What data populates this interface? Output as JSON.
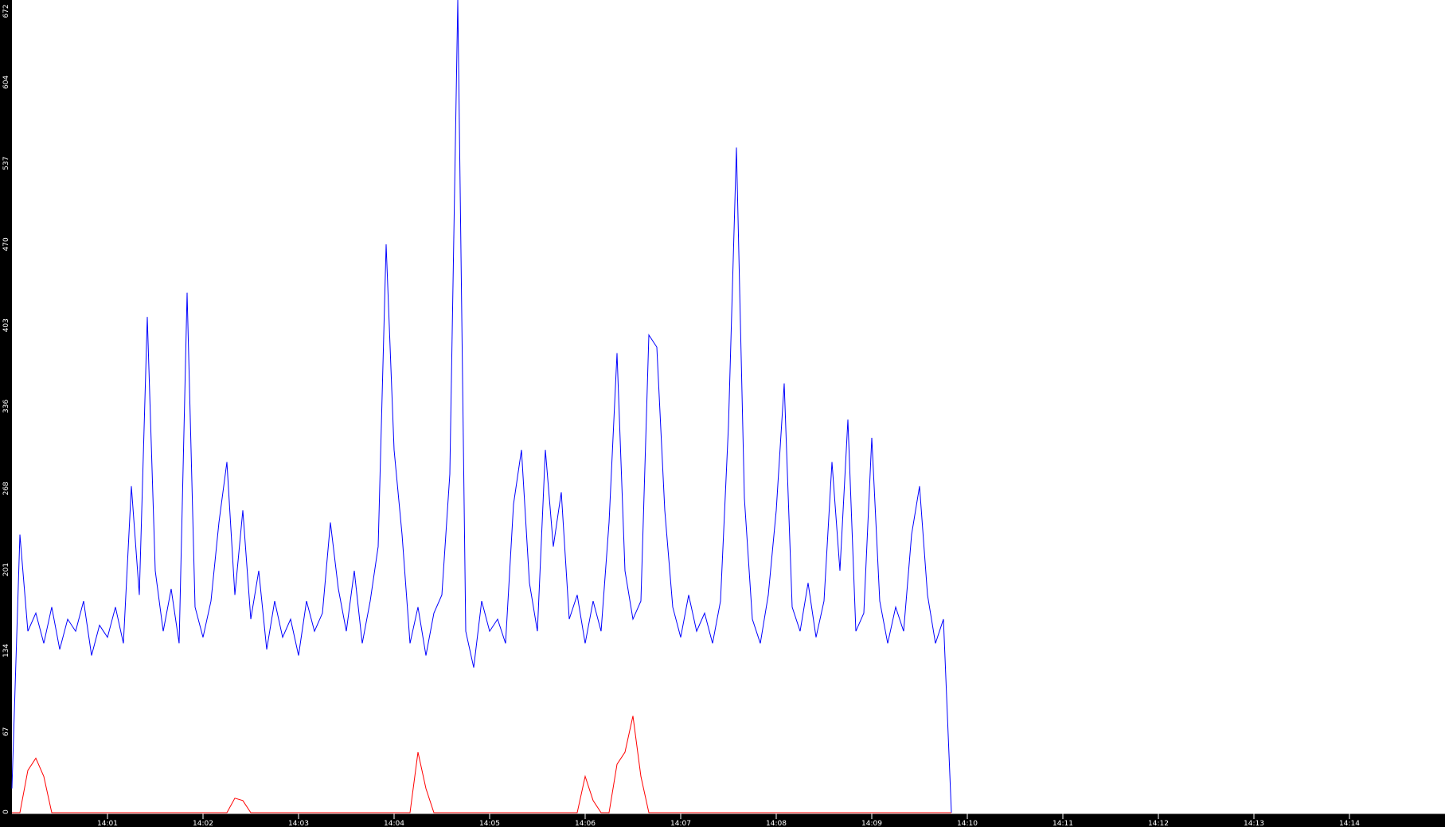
{
  "chart_data": {
    "type": "line",
    "title": "",
    "xlabel": "",
    "ylabel": "",
    "ylim": [
      0,
      672
    ],
    "xlim": [
      "14:00:00",
      "14:15:00"
    ],
    "grid": false,
    "yticks": [
      "0",
      "67",
      "134",
      "201",
      "268",
      "336",
      "403",
      "470",
      "537",
      "604",
      "672"
    ],
    "xticks": [
      "14:01",
      "14:02",
      "14:03",
      "14:04",
      "14:05",
      "14:06",
      "14:07",
      "14:08",
      "14:09",
      "14:10",
      "14:11",
      "14:12",
      "14:13",
      "14:14"
    ],
    "x": [
      "14:00:00",
      "14:00:05",
      "14:00:10",
      "14:00:15",
      "14:00:20",
      "14:00:25",
      "14:00:30",
      "14:00:35",
      "14:00:40",
      "14:00:45",
      "14:00:50",
      "14:00:55",
      "14:01:00",
      "14:01:05",
      "14:01:10",
      "14:01:15",
      "14:01:20",
      "14:01:25",
      "14:01:30",
      "14:01:35",
      "14:01:40",
      "14:01:45",
      "14:01:50",
      "14:01:55",
      "14:02:00",
      "14:02:05",
      "14:02:10",
      "14:02:15",
      "14:02:20",
      "14:02:25",
      "14:02:30",
      "14:02:35",
      "14:02:40",
      "14:02:45",
      "14:02:50",
      "14:02:55",
      "14:03:00",
      "14:03:05",
      "14:03:10",
      "14:03:15",
      "14:03:20",
      "14:03:25",
      "14:03:30",
      "14:03:35",
      "14:03:40",
      "14:03:45",
      "14:03:50",
      "14:03:55",
      "14:04:00",
      "14:04:05",
      "14:04:10",
      "14:04:15",
      "14:04:20",
      "14:04:25",
      "14:04:30",
      "14:04:35",
      "14:04:40",
      "14:04:45",
      "14:04:50",
      "14:04:55",
      "14:05:00",
      "14:05:05",
      "14:05:10",
      "14:05:15",
      "14:05:20",
      "14:05:25",
      "14:05:30",
      "14:05:35",
      "14:05:40",
      "14:05:45",
      "14:05:50",
      "14:05:55",
      "14:06:00",
      "14:06:05",
      "14:06:10",
      "14:06:15",
      "14:06:20",
      "14:06:25",
      "14:06:30",
      "14:06:35",
      "14:06:40",
      "14:06:45",
      "14:06:50",
      "14:06:55",
      "14:07:00",
      "14:07:05",
      "14:07:10",
      "14:07:15",
      "14:07:20",
      "14:07:25",
      "14:07:30",
      "14:07:35",
      "14:07:40",
      "14:07:45",
      "14:07:50",
      "14:07:55",
      "14:08:00",
      "14:08:05",
      "14:08:10",
      "14:08:15",
      "14:08:20",
      "14:08:25",
      "14:08:30",
      "14:08:35",
      "14:08:40",
      "14:08:45",
      "14:08:50",
      "14:08:55",
      "14:09:00",
      "14:09:05",
      "14:09:10",
      "14:09:15",
      "14:09:20",
      "14:09:25",
      "14:09:30",
      "14:09:35",
      "14:09:40",
      "14:09:45",
      "14:09:50"
    ],
    "series": [
      {
        "color": "#0000ff",
        "values": [
          20,
          230,
          150,
          165,
          140,
          170,
          135,
          160,
          150,
          175,
          130,
          155,
          145,
          170,
          140,
          270,
          180,
          410,
          200,
          150,
          185,
          140,
          430,
          170,
          145,
          175,
          240,
          290,
          180,
          250,
          160,
          200,
          135,
          175,
          145,
          160,
          130,
          175,
          150,
          165,
          240,
          185,
          150,
          200,
          140,
          175,
          220,
          470,
          300,
          230,
          140,
          170,
          130,
          165,
          180,
          280,
          672,
          150,
          120,
          175,
          150,
          160,
          140,
          255,
          300,
          190,
          150,
          300,
          220,
          265,
          160,
          180,
          140,
          175,
          150,
          240,
          380,
          200,
          160,
          175,
          395,
          385,
          250,
          170,
          145,
          180,
          150,
          165,
          140,
          175,
          320,
          550,
          260,
          160,
          140,
          180,
          250,
          355,
          170,
          150,
          190,
          145,
          175,
          290,
          200,
          325,
          150,
          165,
          310,
          175,
          140,
          170,
          150,
          230,
          270,
          180,
          140,
          160,
          0
        ]
      },
      {
        "color": "#ff0000",
        "values": [
          0,
          0,
          35,
          45,
          30,
          0,
          0,
          0,
          0,
          0,
          0,
          0,
          0,
          0,
          0,
          0,
          0,
          0,
          0,
          0,
          0,
          0,
          0,
          0,
          0,
          0,
          0,
          0,
          12,
          10,
          0,
          0,
          0,
          0,
          0,
          0,
          0,
          0,
          0,
          0,
          0,
          0,
          0,
          0,
          0,
          0,
          0,
          0,
          0,
          0,
          0,
          50,
          20,
          0,
          0,
          0,
          0,
          0,
          0,
          0,
          0,
          0,
          0,
          0,
          0,
          0,
          0,
          0,
          0,
          0,
          0,
          0,
          30,
          10,
          0,
          0,
          40,
          50,
          80,
          30,
          0,
          0,
          0,
          0,
          0,
          0,
          0,
          0,
          0,
          0,
          0,
          0,
          0,
          0,
          0,
          0,
          0,
          0,
          0,
          0,
          0,
          0,
          0,
          0,
          0,
          0,
          0,
          0,
          0,
          0,
          0,
          0,
          0,
          0,
          0,
          0,
          0,
          0,
          0
        ]
      }
    ]
  }
}
